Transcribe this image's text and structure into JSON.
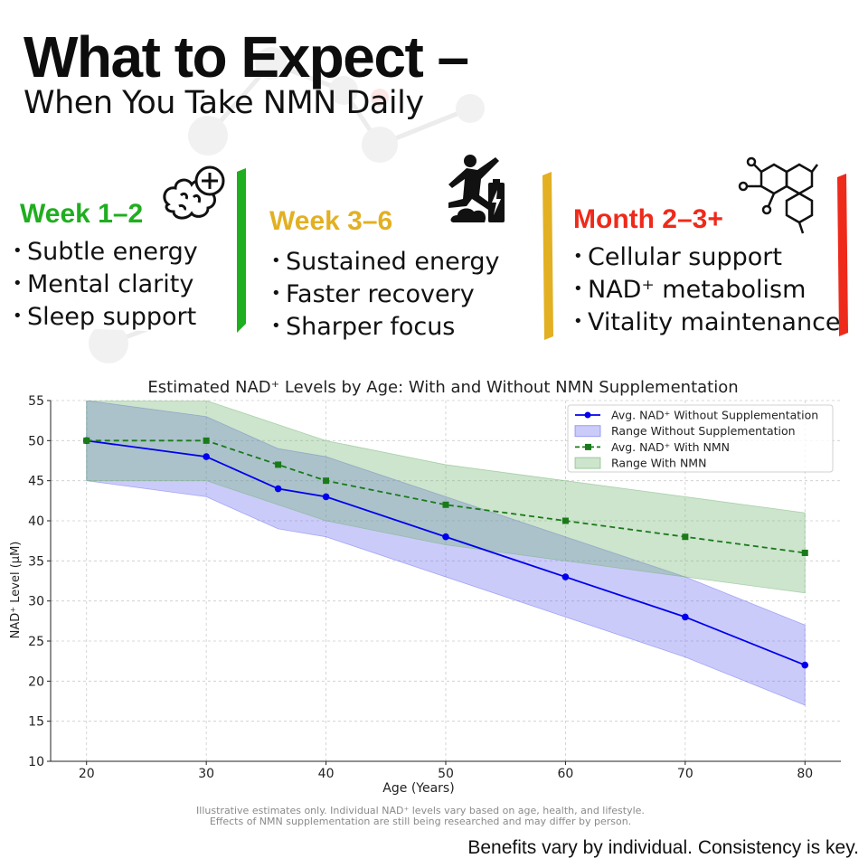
{
  "header": {
    "title": "What to Expect –",
    "subtitle": "When You Take NMN Daily"
  },
  "cards": [
    {
      "heading": "Week 1–2",
      "color": "#1fae1f",
      "icon": "brain-plus-icon",
      "items": [
        "Subtle energy",
        "Mental clarity",
        "Sleep support"
      ]
    },
    {
      "heading": "Week 3–6",
      "color": "#e2b022",
      "icon": "jumping-person-battery-icon",
      "items": [
        "Sustained energy",
        "Faster recovery",
        "Sharper focus"
      ]
    },
    {
      "heading": "Month 2–3+",
      "color": "#ee2a1b",
      "icon": "molecule-structure-icon",
      "items": [
        "Cellular support",
        "NAD⁺ metabolism",
        "Vitality maintenance"
      ]
    }
  ],
  "chart_data": {
    "type": "line",
    "title": "Estimated NAD⁺ Levels by Age: With and Without NMN Supplementation",
    "xlabel": "Age (Years)",
    "ylabel": "NAD⁺ Level (µM)",
    "xlim": [
      17,
      83
    ],
    "ylim": [
      10,
      55
    ],
    "xticks": [
      20,
      30,
      40,
      50,
      60,
      70,
      80
    ],
    "yticks": [
      10,
      15,
      20,
      25,
      30,
      35,
      40,
      45,
      50,
      55
    ],
    "grid": true,
    "legend_position": "top-right",
    "series": [
      {
        "name": "Avg. NAD⁺ Without Supplementation",
        "kind": "line",
        "color": "#0000ee",
        "marker": "circle",
        "dashed": false,
        "x": [
          20,
          30,
          36,
          40,
          50,
          60,
          70,
          80
        ],
        "y": [
          50,
          48,
          44,
          43,
          38,
          33,
          28,
          22
        ]
      },
      {
        "name": "Range Without Supplementation",
        "kind": "band",
        "color": "#6a6af2",
        "x": [
          20,
          30,
          36,
          40,
          50,
          60,
          70,
          80
        ],
        "lower": [
          45,
          43,
          39,
          38,
          33,
          28,
          23,
          17
        ],
        "upper": [
          55,
          53,
          49,
          48,
          43,
          38,
          33,
          27
        ]
      },
      {
        "name": "Avg. NAD⁺ With NMN",
        "kind": "line",
        "color": "#1a7a1a",
        "marker": "square",
        "dashed": true,
        "x": [
          20,
          30,
          36,
          40,
          50,
          60,
          70,
          80
        ],
        "y": [
          50,
          50,
          47,
          45,
          42,
          40,
          38,
          36
        ]
      },
      {
        "name": "Range With NMN",
        "kind": "band",
        "color": "#6fb36f",
        "x": [
          20,
          30,
          36,
          40,
          50,
          60,
          70,
          80
        ],
        "lower": [
          45,
          45,
          42,
          40,
          37,
          35,
          33,
          31
        ],
        "upper": [
          55,
          55,
          52,
          50,
          47,
          45,
          43,
          41
        ]
      }
    ]
  },
  "disclaimer": {
    "line1": "Illustrative estimates only. Individual NAD⁺ levels vary based on age, health, and lifestyle.",
    "line2": "Effects of NMN supplementation are still being researched and may differ by person."
  },
  "footer": "Benefits vary by individual. Consistency is key."
}
